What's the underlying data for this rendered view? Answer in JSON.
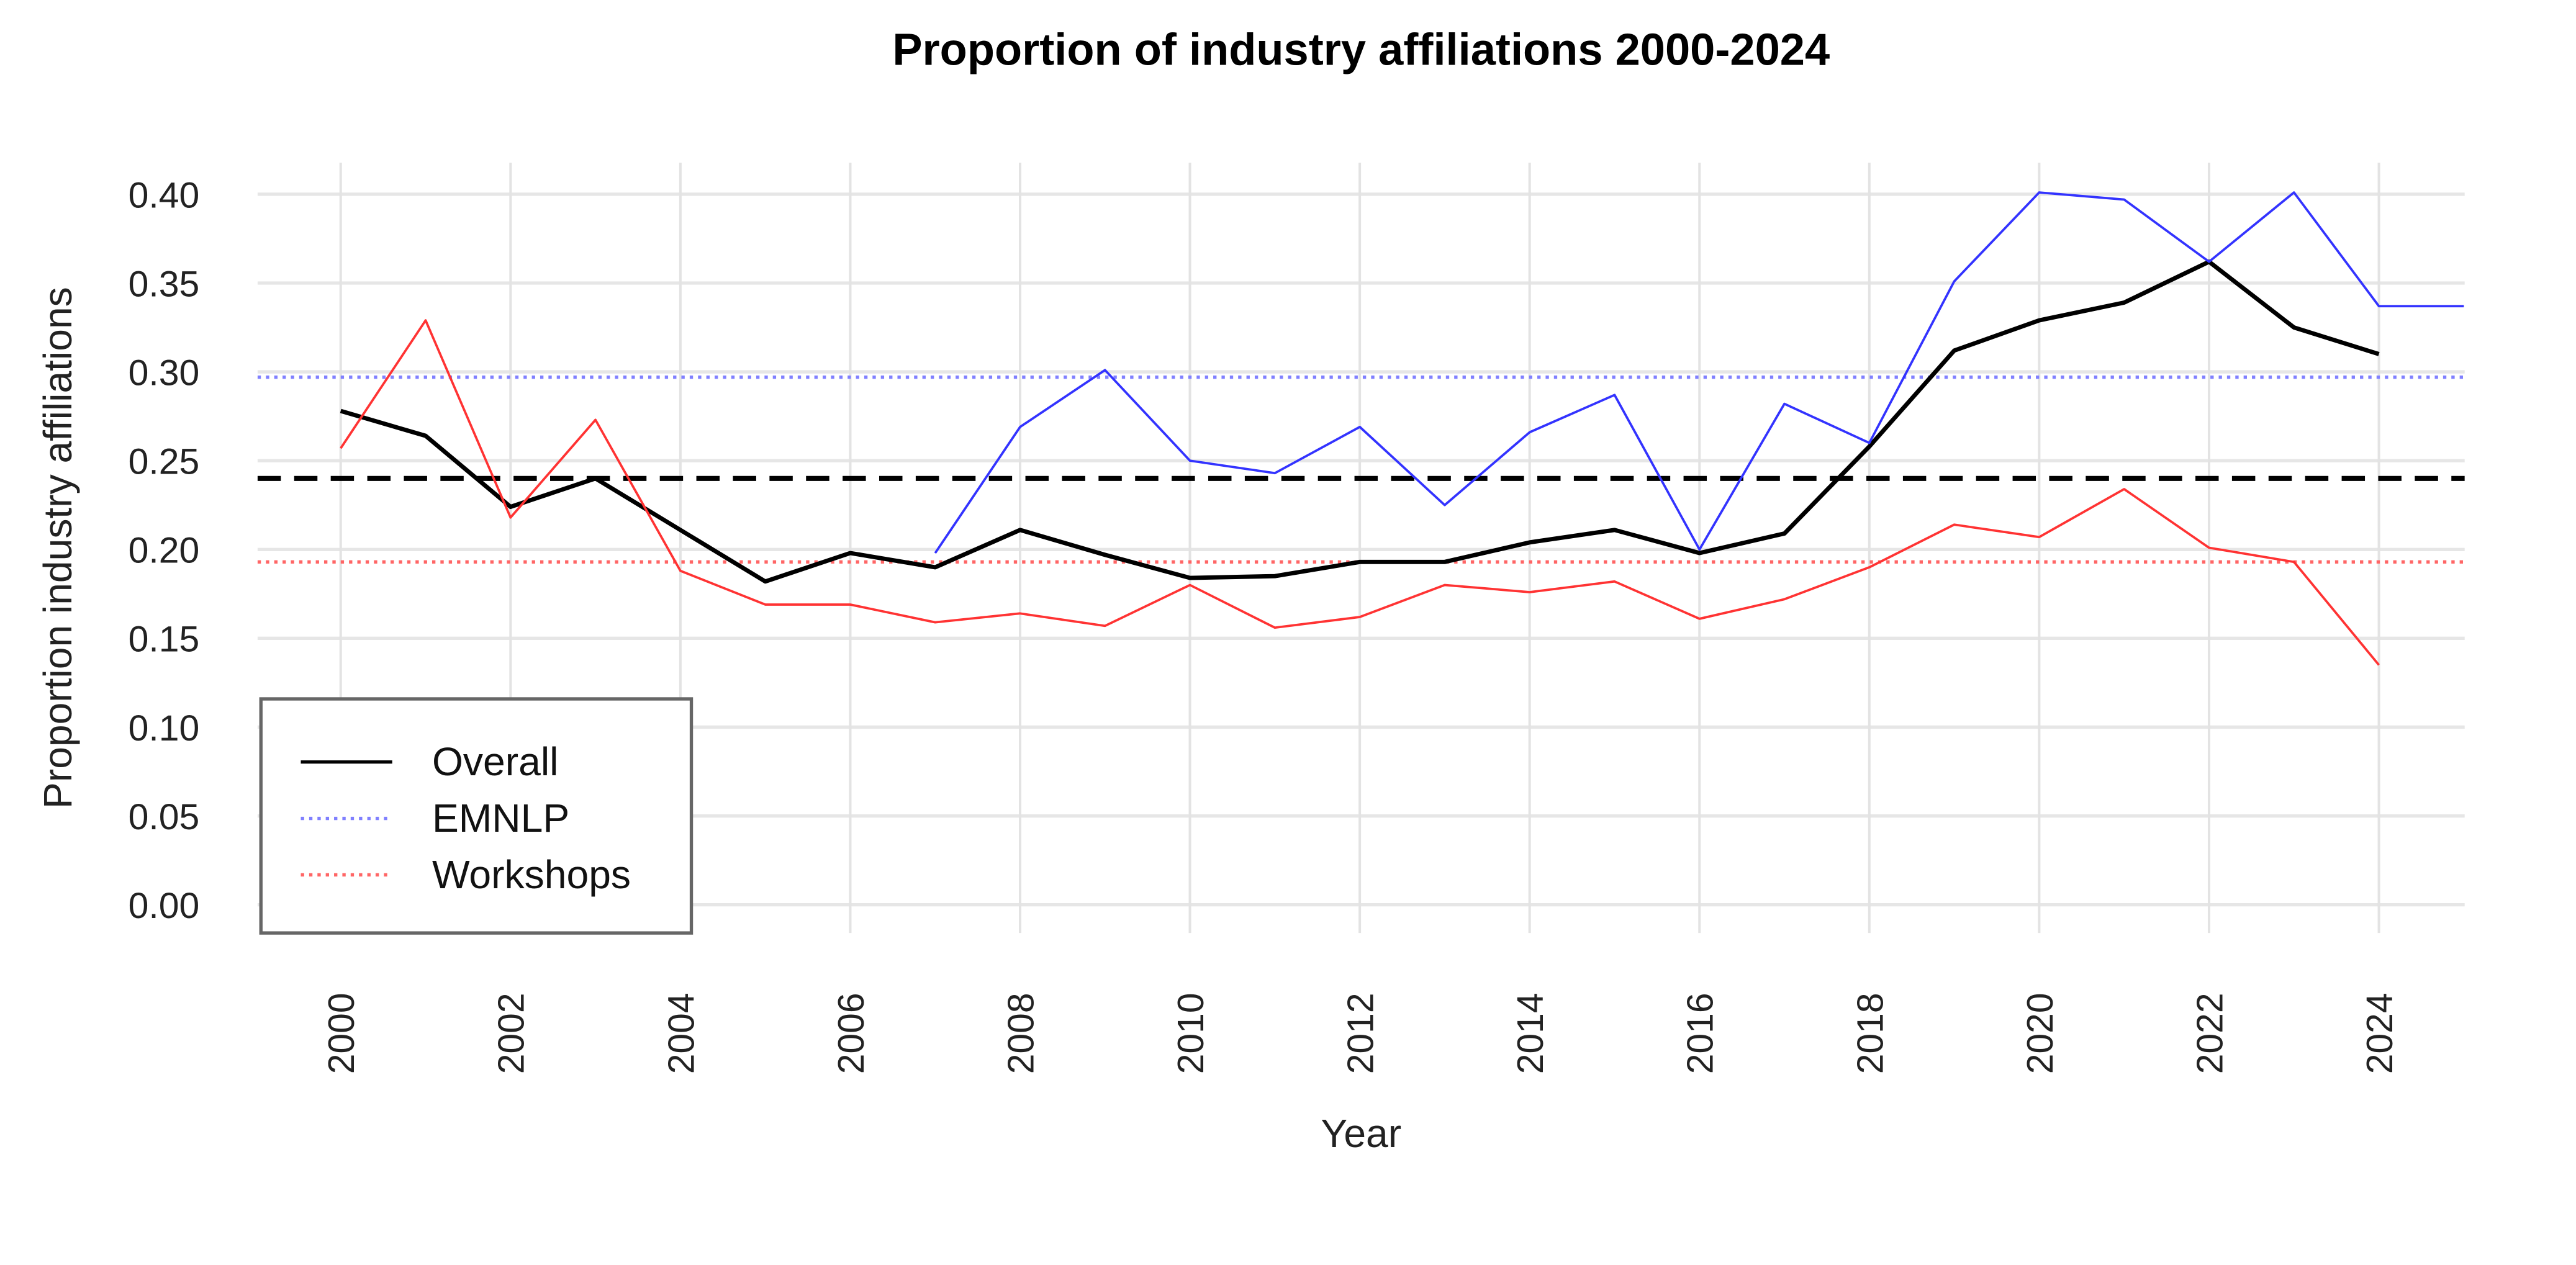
{
  "chart_data": {
    "type": "line",
    "title": "Proportion of industry affiliations 2000-2024",
    "xlabel": "Year",
    "ylabel": "Proportion industry affiliations",
    "xlim": [
      1999.0,
      2025.0
    ],
    "ylim": [
      0.0,
      0.41
    ],
    "x_ticks": [
      2000,
      2002,
      2004,
      2006,
      2008,
      2010,
      2012,
      2014,
      2016,
      2018,
      2020,
      2022,
      2024
    ],
    "x_tick_labels": [
      "2000",
      "2002",
      "2004",
      "2006",
      "2008",
      "2010",
      "2012",
      "2014",
      "2016",
      "2018",
      "2020",
      "2022",
      "2024"
    ],
    "x_grid": [
      2000,
      2002,
      2004,
      2006,
      2008,
      2010,
      2012,
      2014,
      2016,
      2018,
      2020,
      2022,
      2024
    ],
    "y_ticks": [
      0.0,
      0.05,
      0.1,
      0.15,
      0.2,
      0.25,
      0.3,
      0.35,
      0.4
    ],
    "y_tick_labels": [
      "0.00",
      "0.05",
      "0.10",
      "0.15",
      "0.20",
      "0.25",
      "0.30",
      "0.35",
      "0.40"
    ],
    "grid": true,
    "legend_position": "bottom-left",
    "series": [
      {
        "name": "Overall",
        "color": "#000000",
        "style": "solid",
        "x": [
          2000,
          2001,
          2002,
          2003,
          2004,
          2005,
          2006,
          2007,
          2008,
          2009,
          2010,
          2011,
          2012,
          2013,
          2014,
          2015,
          2016,
          2017,
          2018,
          2019,
          2020,
          2021,
          2022,
          2023,
          2024
        ],
        "values": [
          0.278,
          0.264,
          0.224,
          0.24,
          0.211,
          0.182,
          0.198,
          0.19,
          0.211,
          0.197,
          0.184,
          0.185,
          0.193,
          0.193,
          0.204,
          0.211,
          0.198,
          0.209,
          0.258,
          0.312,
          0.329,
          0.339,
          0.362,
          0.325,
          0.31
        ]
      },
      {
        "name": "EMNLP",
        "color": "#3333ff",
        "style": "solid",
        "x": [
          2007,
          2008,
          2009,
          2010,
          2011,
          2012,
          2013,
          2014,
          2015,
          2016,
          2017,
          2018,
          2019,
          2020,
          2021,
          2022,
          2023,
          2024,
          2025
        ],
        "values": [
          0.198,
          0.269,
          0.301,
          0.25,
          0.243,
          0.269,
          0.225,
          0.266,
          0.287,
          0.2,
          0.282,
          0.26,
          0.351,
          0.401,
          0.397,
          0.362,
          0.401,
          0.337,
          0.337
        ]
      },
      {
        "name": "Workshops",
        "color": "#ff3333",
        "style": "solid",
        "x": [
          2000,
          2001,
          2002,
          2003,
          2004,
          2005,
          2006,
          2007,
          2008,
          2009,
          2010,
          2011,
          2012,
          2013,
          2014,
          2015,
          2016,
          2017,
          2018,
          2019,
          2020,
          2021,
          2022,
          2023,
          2024
        ],
        "values": [
          0.257,
          0.329,
          0.218,
          0.273,
          0.188,
          0.169,
          0.169,
          0.159,
          0.164,
          0.157,
          0.18,
          0.156,
          0.162,
          0.18,
          0.176,
          0.182,
          0.161,
          0.172,
          0.19,
          0.214,
          0.207,
          0.234,
          0.201,
          0.193,
          0.135
        ]
      }
    ],
    "reference_lines": [
      {
        "name": "Overall mean",
        "value": 0.24,
        "color": "#000000",
        "style": "dashed"
      },
      {
        "name": "EMNLP mean",
        "value": 0.297,
        "color": "#8080ff",
        "style": "dotted"
      },
      {
        "name": "Workshops mean",
        "value": 0.193,
        "color": "#ff6666",
        "style": "dotted"
      }
    ],
    "legend": [
      {
        "label": "Overall",
        "color": "#000000",
        "style": "solid"
      },
      {
        "label": "EMNLP",
        "color": "#8080ff",
        "style": "dotted"
      },
      {
        "label": "Workshops",
        "color": "#ff6666",
        "style": "dotted"
      }
    ]
  }
}
